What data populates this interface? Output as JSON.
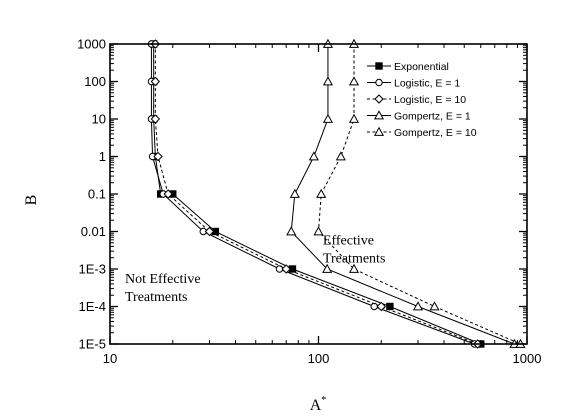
{
  "chart_data": {
    "type": "line",
    "xlabel": "A",
    "xlabel_superscript": "*",
    "ylabel": "B",
    "x_scale": "log",
    "y_scale": "log",
    "xlim": [
      10,
      1000
    ],
    "ylim": [
      1e-05,
      1000
    ],
    "x_ticks": [
      {
        "value": 10,
        "label": "10"
      },
      {
        "value": 100,
        "label": "100"
      },
      {
        "value": 1000,
        "label": "1000"
      }
    ],
    "y_ticks": [
      {
        "value": 1000,
        "label": "1000"
      },
      {
        "value": 100,
        "label": "100"
      },
      {
        "value": 10,
        "label": "10"
      },
      {
        "value": 1,
        "label": "1"
      },
      {
        "value": 0.1,
        "label": "0.1"
      },
      {
        "value": 0.01,
        "label": "0.01"
      },
      {
        "value": 0.001,
        "label": "1E-3"
      },
      {
        "value": 0.0001,
        "label": "1E-4"
      },
      {
        "value": 1e-05,
        "label": "1E-5"
      }
    ],
    "legend_position": "top-right",
    "annotations": [
      {
        "lines": [
          "Effective",
          "Treatments"
        ],
        "x": 105,
        "y": 0.0045
      },
      {
        "lines": [
          "Not Effective",
          "Treatments"
        ],
        "x": 11.8,
        "y": 0.00042
      }
    ],
    "series": [
      {
        "name": "Exponential",
        "marker": "square-filled",
        "dash": "solid",
        "x": [
          16.2,
          16.2,
          16.2,
          16.5,
          17.5,
          20,
          32,
          75,
          220,
          600
        ],
        "y": [
          1000,
          100,
          10,
          1,
          0.1,
          0.1,
          0.01,
          0.001,
          0.0001,
          1e-05
        ]
      },
      {
        "name": "Logistic, E = 1",
        "marker": "circle-open",
        "dash": "solid",
        "x": [
          15.8,
          15.8,
          15.8,
          16,
          18,
          28,
          65,
          185,
          560
        ],
        "y": [
          1000,
          100,
          10,
          1,
          0.1,
          0.01,
          0.001,
          0.0001,
          1e-05
        ]
      },
      {
        "name": "Logistic, E = 10",
        "marker": "diamond-open",
        "dash": "dashed",
        "x": [
          16.5,
          16.5,
          16.5,
          17,
          19,
          30,
          70,
          200,
          580
        ],
        "y": [
          1000,
          100,
          10,
          1,
          0.1,
          0.01,
          0.001,
          0.0001,
          1e-05
        ]
      },
      {
        "name": "Gompertz, E = 1",
        "marker": "triangle-open",
        "dash": "solid",
        "x": [
          111,
          111,
          111,
          95,
          77,
          74,
          110,
          300,
          870
        ],
        "y": [
          1000,
          100,
          10,
          1,
          0.1,
          0.01,
          0.001,
          0.0001,
          1e-05
        ]
      },
      {
        "name": "Gompertz, E = 10",
        "marker": "triangle-open",
        "dash": "dashed",
        "x": [
          148,
          148,
          148,
          128,
          103,
          100,
          148,
          360,
          930
        ],
        "y": [
          1000,
          100,
          10,
          1,
          0.1,
          0.01,
          0.001,
          0.0001,
          1e-05
        ]
      }
    ]
  }
}
